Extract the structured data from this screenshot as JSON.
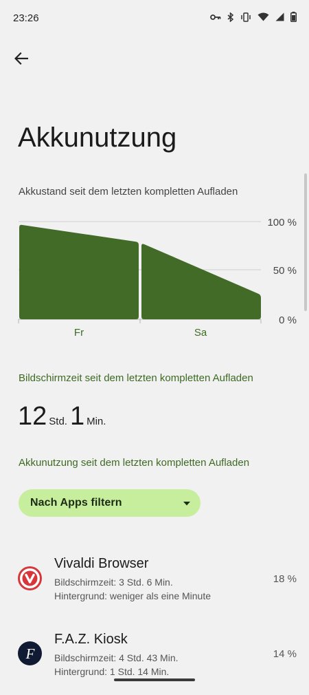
{
  "status": {
    "time": "23:26",
    "icons": [
      "key-icon",
      "bluetooth-icon",
      "vibrate-icon",
      "wifi-icon",
      "signal-icon",
      "battery-icon"
    ]
  },
  "page": {
    "title": "Akkunutzung",
    "back_icon": "arrow-back-icon"
  },
  "chart_caption": "Akkustand seit dem letzten kompletten Aufladen",
  "chart_data": {
    "type": "area",
    "title": "",
    "x_categories": [
      "Fr",
      "Sa"
    ],
    "y_tick_labels": [
      "100 %",
      "50 %",
      "0 %"
    ],
    "ylim": [
      0,
      100
    ],
    "series": [
      {
        "segment": "Fr",
        "start": 97,
        "end": 79
      },
      {
        "segment": "Sa",
        "start": 78,
        "end": 25
      }
    ],
    "fill_color": "#426b28",
    "grid": true
  },
  "screen_time": {
    "label": "Bildschirmzeit seit dem letzten kompletten Aufladen",
    "hours": "12",
    "hours_unit": "Std.",
    "minutes": "1",
    "minutes_unit": "Min."
  },
  "usage": {
    "label": "Akkunutzung seit dem letzten kompletten Aufladen",
    "filter_label": "Nach Apps filtern",
    "apps": [
      {
        "name": "Vivaldi Browser",
        "screen_time": "Bildschirmzeit: 3 Std. 6 Min.",
        "background": "Hintergrund: weniger als eine Minute",
        "percent": "18 %",
        "icon": "vivaldi-icon"
      },
      {
        "name": "F.A.Z. Kiosk",
        "screen_time": "Bildschirmzeit: 4 Std. 43 Min.",
        "background": "Hintergrund: 1 Std. 14 Min.",
        "percent": "14 %",
        "icon": "faz-icon"
      }
    ]
  },
  "colors": {
    "accent_green": "#3d6a23",
    "chip_bg": "#c7ee9c",
    "background": "#f1f1f1"
  }
}
